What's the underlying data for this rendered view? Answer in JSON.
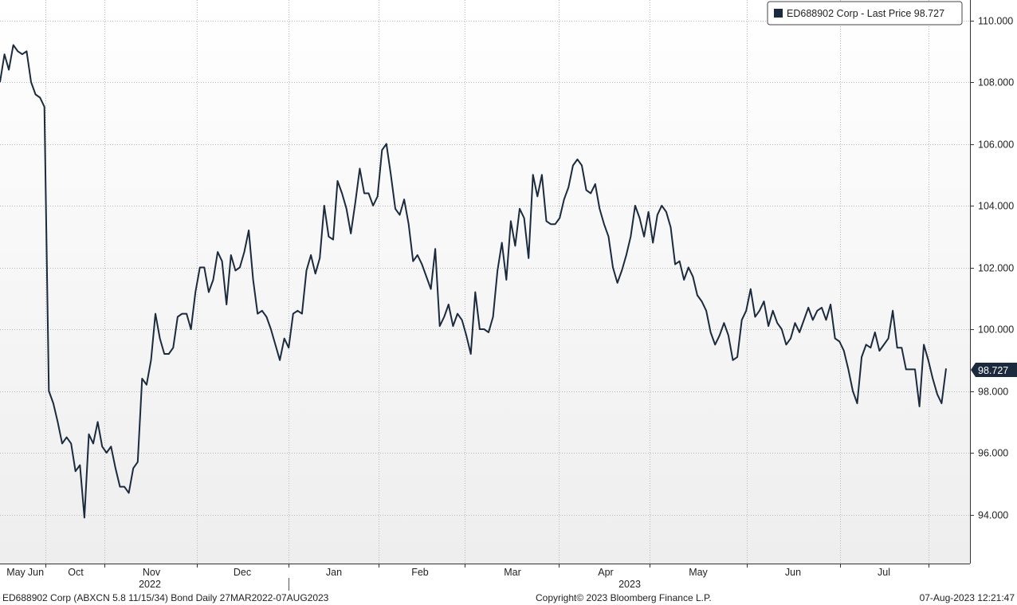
{
  "chart_data": {
    "type": "line",
    "title": "",
    "xlabel": "",
    "ylabel": "",
    "ylim": [
      92.5,
      110.5
    ],
    "y_ticks": [
      "110.000",
      "108.000",
      "106.000",
      "104.000",
      "102.000",
      "100.000",
      "98.000",
      "96.000",
      "94.000"
    ],
    "y_tick_values": [
      110,
      108,
      106,
      104,
      102,
      100,
      98,
      96,
      94
    ],
    "x_ticks": [
      {
        "label": "May",
        "date": "2022-05-01"
      },
      {
        "label": "Jun",
        "date": "2022-06-01"
      },
      {
        "label": "Oct",
        "date": "2022-10-01"
      },
      {
        "label": "Nov",
        "date": "2022-11-01"
      },
      {
        "label": "Dec",
        "date": "2022-12-01"
      },
      {
        "label": "Jan",
        "date": "2023-01-01"
      },
      {
        "label": "Feb",
        "date": "2023-02-01"
      },
      {
        "label": "Mar",
        "date": "2023-03-01"
      },
      {
        "label": "Apr",
        "date": "2023-04-01"
      },
      {
        "label": "May",
        "date": "2023-05-01"
      },
      {
        "label": "Jun",
        "date": "2023-06-01"
      },
      {
        "label": "Jul",
        "date": "2023-07-01"
      }
    ],
    "year_labels": [
      "2022",
      "2023"
    ],
    "grid": true,
    "legend": {
      "position": "top-right",
      "label": "ED688902 Corp - Last Price 98.727"
    },
    "last_value_label": "98.727",
    "colors": {
      "line": "#1b2a3d",
      "legend_swatch": "#1b2a3d",
      "last_value_bg": "#1b2a3d"
    },
    "series": [
      {
        "name": "ED688902 Corp - Last Price",
        "values": [
          108.0,
          108.9,
          108.4,
          109.2,
          109.0,
          108.9,
          109.0,
          108.0,
          107.6,
          107.5,
          107.2,
          98.0,
          97.6,
          97.0,
          96.3,
          96.5,
          96.3,
          95.4,
          95.6,
          93.9,
          96.6,
          96.3,
          97.0,
          96.2,
          96.0,
          96.2,
          95.5,
          94.9,
          94.9,
          94.7,
          95.5,
          95.7,
          98.4,
          98.2,
          99.0,
          100.5,
          99.7,
          99.2,
          99.2,
          99.4,
          100.4,
          100.5,
          100.5,
          100.0,
          101.2,
          102.0,
          102.0,
          101.2,
          101.6,
          102.5,
          102.2,
          100.8,
          102.4,
          101.9,
          102.0,
          102.5,
          103.2,
          101.6,
          100.5,
          100.6,
          100.4,
          100.0,
          99.5,
          99.0,
          99.7,
          99.4,
          100.5,
          100.6,
          100.5,
          101.9,
          102.4,
          101.8,
          102.3,
          104.0,
          103.0,
          102.9,
          104.8,
          104.4,
          103.9,
          103.1,
          104.1,
          105.2,
          104.4,
          104.4,
          104.0,
          104.3,
          105.8,
          106.0,
          105.0,
          103.9,
          103.7,
          104.2,
          103.4,
          102.2,
          102.4,
          102.1,
          101.7,
          101.3,
          102.6,
          100.1,
          100.4,
          100.8,
          100.1,
          100.5,
          100.3,
          99.8,
          99.2,
          101.2,
          100.0,
          100.0,
          99.9,
          100.4,
          101.9,
          102.8,
          101.6,
          103.5,
          102.7,
          103.9,
          103.6,
          102.3,
          105.0,
          104.3,
          105.0,
          103.5,
          103.4,
          103.4,
          103.6,
          104.2,
          104.6,
          105.3,
          105.5,
          105.3,
          104.5,
          104.4,
          104.7,
          103.9,
          103.4,
          103.0,
          102.0,
          101.5,
          101.9,
          102.4,
          103.0,
          104.0,
          103.6,
          103.0,
          103.8,
          102.8,
          103.7,
          104.0,
          103.8,
          103.3,
          102.1,
          102.2,
          101.6,
          102.0,
          101.7,
          101.1,
          100.9,
          100.6,
          99.9,
          99.5,
          99.8,
          100.2,
          99.8,
          99.0,
          99.1,
          100.3,
          100.6,
          101.3,
          100.4,
          100.6,
          100.9,
          100.1,
          100.6,
          100.2,
          100.0,
          99.5,
          99.7,
          100.2,
          99.9,
          100.3,
          100.7,
          100.3,
          100.6,
          100.7,
          100.3,
          100.8,
          99.7,
          99.6,
          99.3,
          98.7,
          98.0,
          97.6,
          99.1,
          99.5,
          99.4,
          99.9,
          99.3,
          99.5,
          99.7,
          100.6,
          99.4,
          99.4,
          98.7,
          98.7,
          98.7,
          97.5,
          99.5,
          99.0,
          98.4,
          97.9,
          97.6,
          98.727
        ]
      }
    ]
  },
  "footer": {
    "left": "ED688902 Corp (ABXCN 5.8 11/15/34) Bond  Daily 27MAR2022-07AUG2023",
    "center": "Copyright© 2023 Bloomberg Finance L.P.",
    "right": "07-Aug-2023 12:21:47"
  }
}
